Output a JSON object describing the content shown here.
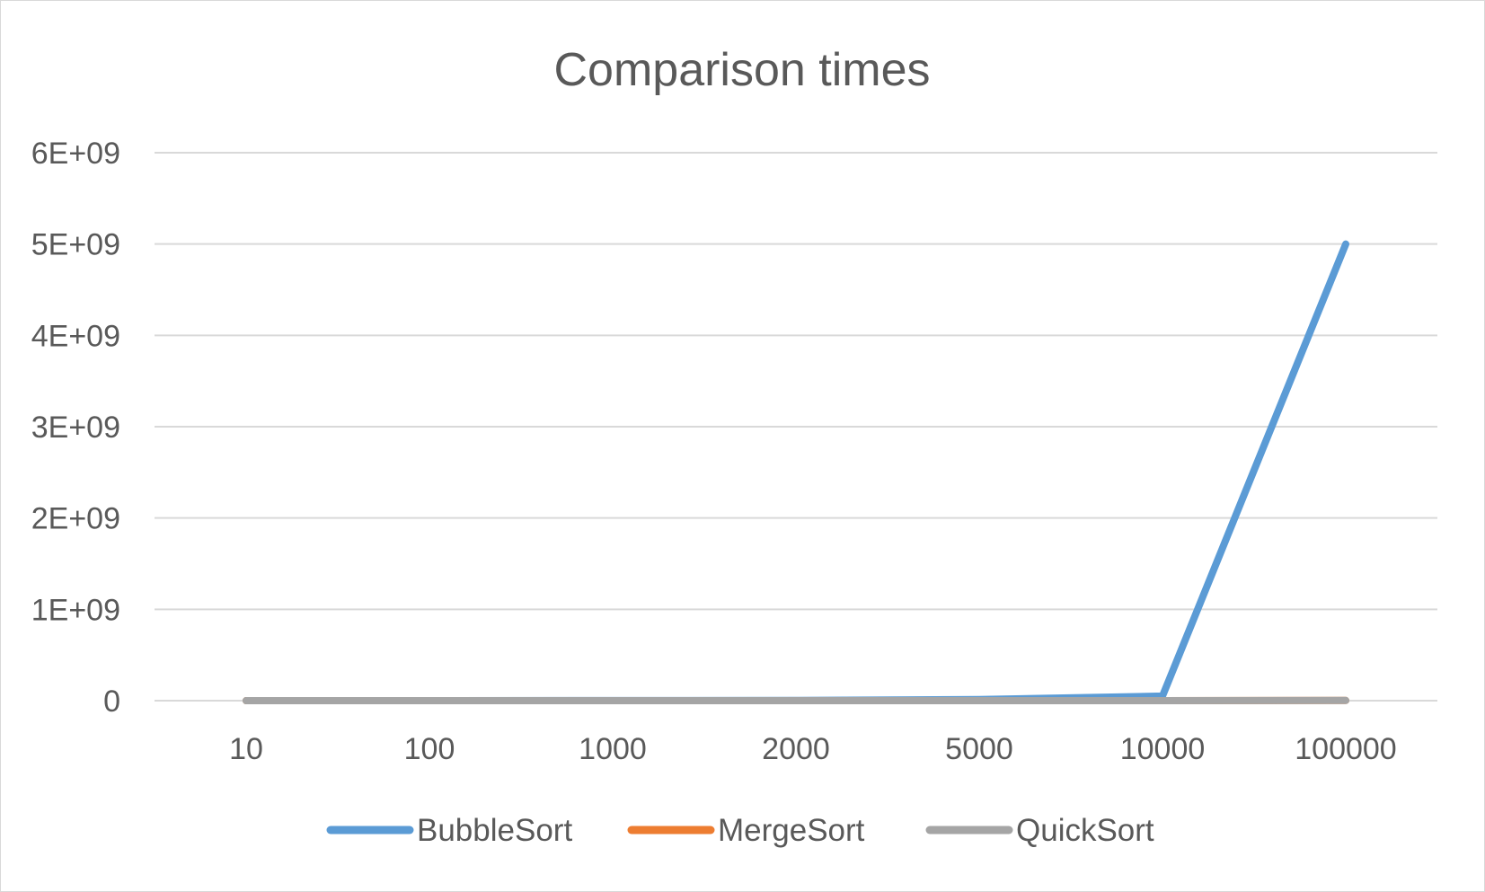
{
  "chart_data": {
    "type": "line",
    "title": "Comparison times",
    "xlabel": "",
    "ylabel": "",
    "categories": [
      "10",
      "100",
      "1000",
      "2000",
      "5000",
      "10000",
      "100000"
    ],
    "y_ticks": [
      "0",
      "1E+09",
      "2E+09",
      "3E+09",
      "4E+09",
      "5E+09",
      "6E+09"
    ],
    "ylim": [
      0,
      6000000000
    ],
    "grid": true,
    "legend_position": "bottom",
    "series": [
      {
        "name": "BubbleSort",
        "color": "#5b9bd5",
        "values": [
          45,
          4950,
          499500,
          1999000,
          12497500,
          49995000,
          4999950000
        ]
      },
      {
        "name": "MergeSort",
        "color": "#ed7d31",
        "values": [
          25,
          540,
          8700,
          19400,
          55200,
          120400,
          1536000
        ]
      },
      {
        "name": "QuickSort",
        "color": "#a5a5a5",
        "values": [
          30,
          700,
          11000,
          24000,
          70000,
          155000,
          2000000
        ]
      }
    ]
  }
}
